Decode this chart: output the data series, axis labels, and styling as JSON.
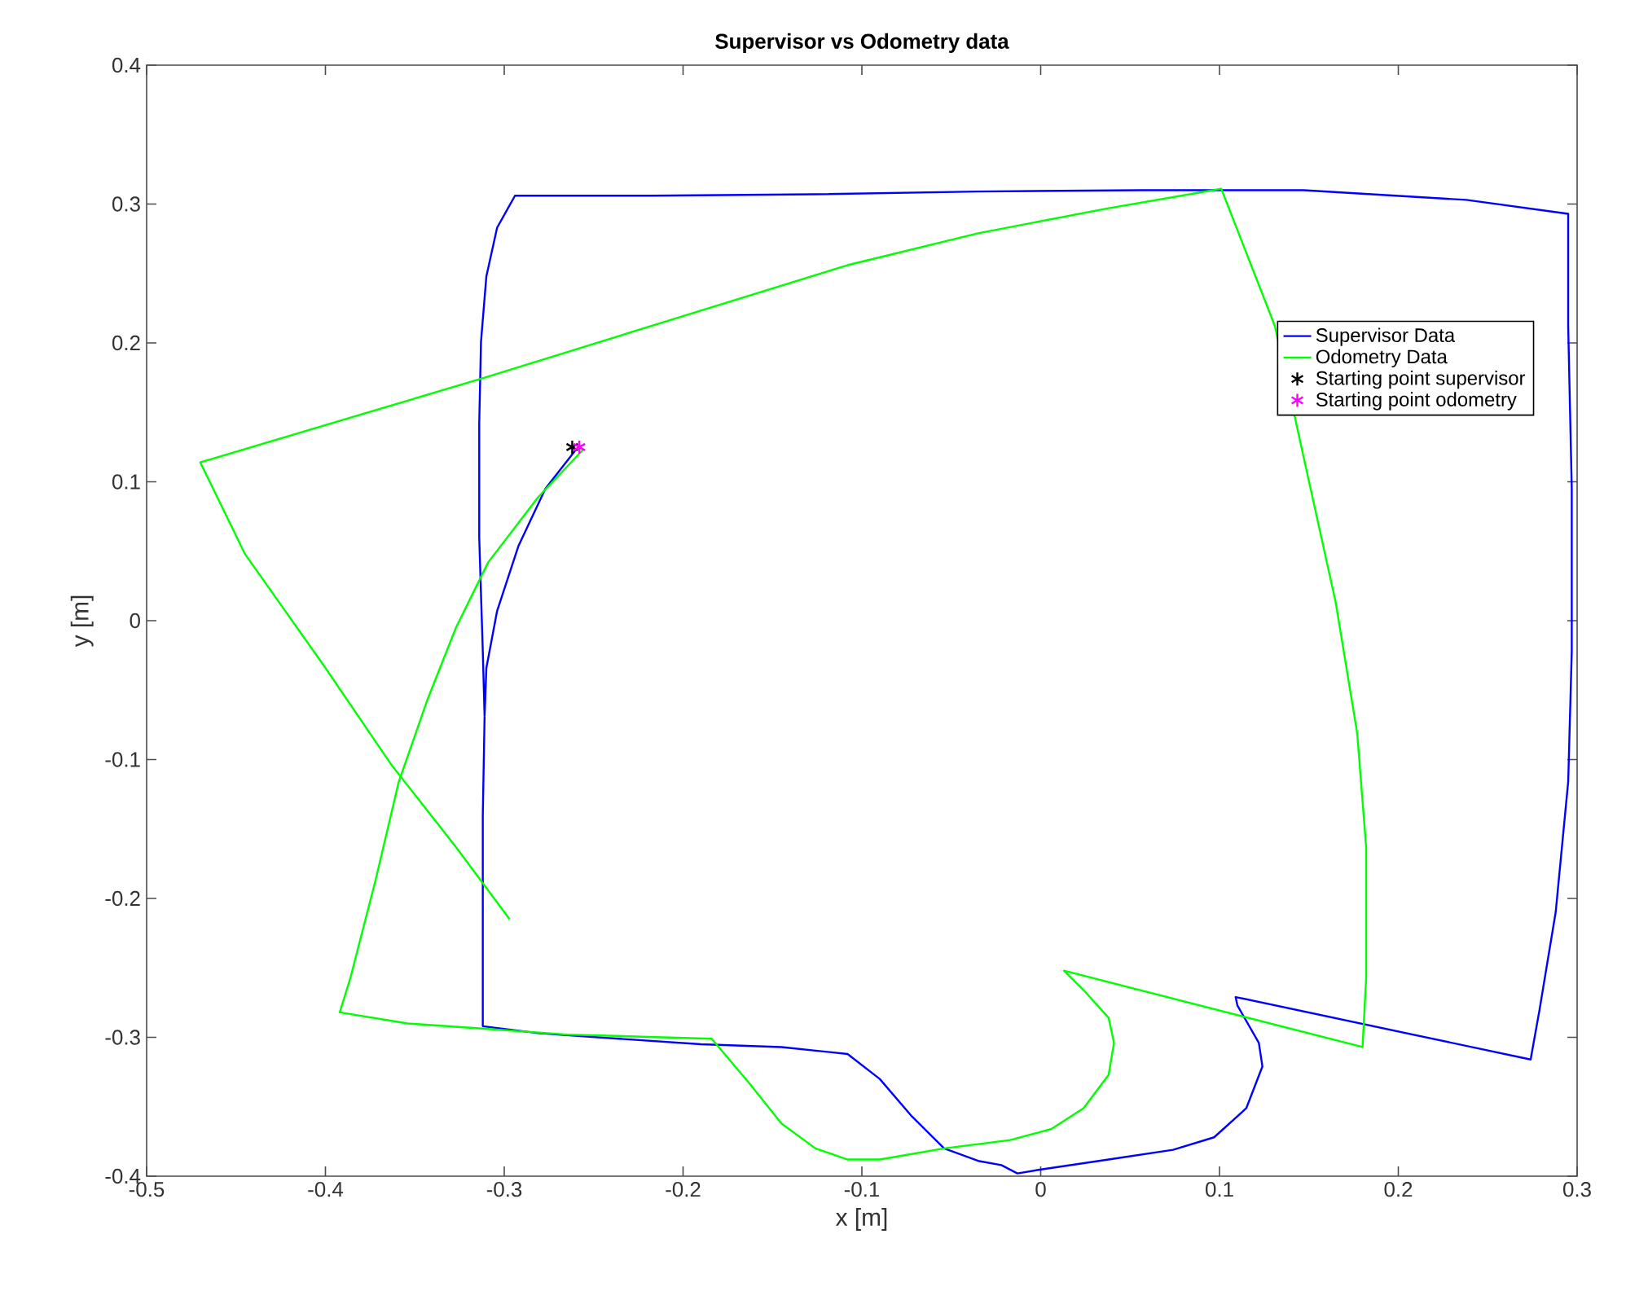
{
  "chart_data": {
    "type": "line",
    "title": "Supervisor vs Odometry data",
    "xlabel": "x [m]",
    "ylabel": "y [m]",
    "xlim": [
      -0.5,
      0.3
    ],
    "ylim": [
      -0.4,
      0.4
    ],
    "xticks": [
      -0.5,
      -0.4,
      -0.3,
      -0.2,
      -0.1,
      0,
      0.1,
      0.2,
      0.3
    ],
    "yticks": [
      -0.4,
      -0.3,
      -0.2,
      -0.1,
      0,
      0.1,
      0.2,
      0.3,
      0.4
    ],
    "legend": "top right",
    "grid": false,
    "series": [
      {
        "name": "Supervisor Data",
        "color": "#0000ff",
        "x": [
          -0.26,
          -0.277,
          -0.292,
          -0.304,
          -0.31,
          -0.311,
          -0.312,
          -0.312,
          -0.281,
          -0.236,
          -0.19,
          -0.145,
          -0.108,
          -0.09,
          -0.072,
          -0.054,
          -0.035,
          -0.022,
          -0.013,
          0.001,
          0.038,
          0.074,
          0.097,
          0.115,
          0.124,
          0.122,
          0.11,
          0.109,
          0.274,
          0.279,
          0.288,
          0.295,
          0.297,
          0.297,
          0.295,
          0.295,
          0.238,
          0.147,
          0.056,
          -0.035,
          -0.126,
          -0.218,
          -0.294,
          -0.304,
          -0.31,
          -0.313,
          -0.314,
          -0.314,
          -0.312,
          -0.311
        ],
        "values": [
          0.123,
          0.095,
          0.054,
          0.007,
          -0.034,
          -0.069,
          -0.14,
          -0.292,
          -0.297,
          -0.301,
          -0.305,
          -0.307,
          -0.312,
          -0.33,
          -0.357,
          -0.38,
          -0.389,
          -0.392,
          -0.398,
          -0.395,
          -0.388,
          -0.381,
          -0.372,
          -0.351,
          -0.321,
          -0.304,
          -0.277,
          -0.271,
          -0.316,
          -0.28,
          -0.21,
          -0.116,
          -0.022,
          0.095,
          0.212,
          0.293,
          0.303,
          0.31,
          0.31,
          0.309,
          0.307,
          0.306,
          0.306,
          0.283,
          0.248,
          0.201,
          0.142,
          0.06,
          -0.022,
          -0.069
        ]
      },
      {
        "name": "Odometry Data",
        "color": "#00ff00",
        "x": [
          -0.256,
          -0.281,
          -0.309,
          -0.327,
          -0.343,
          -0.359,
          -0.372,
          -0.386,
          -0.392,
          -0.354,
          -0.309,
          -0.265,
          -0.184,
          -0.163,
          -0.145,
          -0.126,
          -0.108,
          -0.09,
          -0.054,
          -0.017,
          0.006,
          0.024,
          0.038,
          0.041,
          0.038,
          0.024,
          0.013,
          0.18,
          0.182,
          0.182,
          0.177,
          0.165,
          0.147,
          0.131,
          0.101,
          0.038,
          -0.035,
          -0.108,
          -0.311,
          -0.47,
          -0.445,
          -0.4,
          -0.363,
          -0.327,
          -0.297
        ],
        "values": [
          0.123,
          0.089,
          0.042,
          -0.005,
          -0.057,
          -0.116,
          -0.187,
          -0.257,
          -0.282,
          -0.29,
          -0.294,
          -0.298,
          -0.301,
          -0.333,
          -0.362,
          -0.38,
          -0.388,
          -0.388,
          -0.38,
          -0.374,
          -0.366,
          -0.351,
          -0.327,
          -0.304,
          -0.286,
          -0.266,
          -0.252,
          -0.307,
          -0.257,
          -0.163,
          -0.081,
          0.013,
          0.118,
          0.212,
          0.311,
          0.297,
          0.279,
          0.256,
          0.175,
          0.114,
          0.048,
          -0.034,
          -0.104,
          -0.163,
          -0.215
        ]
      },
      {
        "name": "Starting point supervisor",
        "color": "#000000",
        "type": "scatter",
        "marker": "cross",
        "x": [
          -0.262
        ],
        "values": [
          0.125
        ]
      },
      {
        "name": "Starting point odometry",
        "color": "#ff00ff",
        "type": "scatter",
        "marker": "cross",
        "x": [
          -0.258
        ],
        "values": [
          0.125
        ]
      }
    ]
  }
}
